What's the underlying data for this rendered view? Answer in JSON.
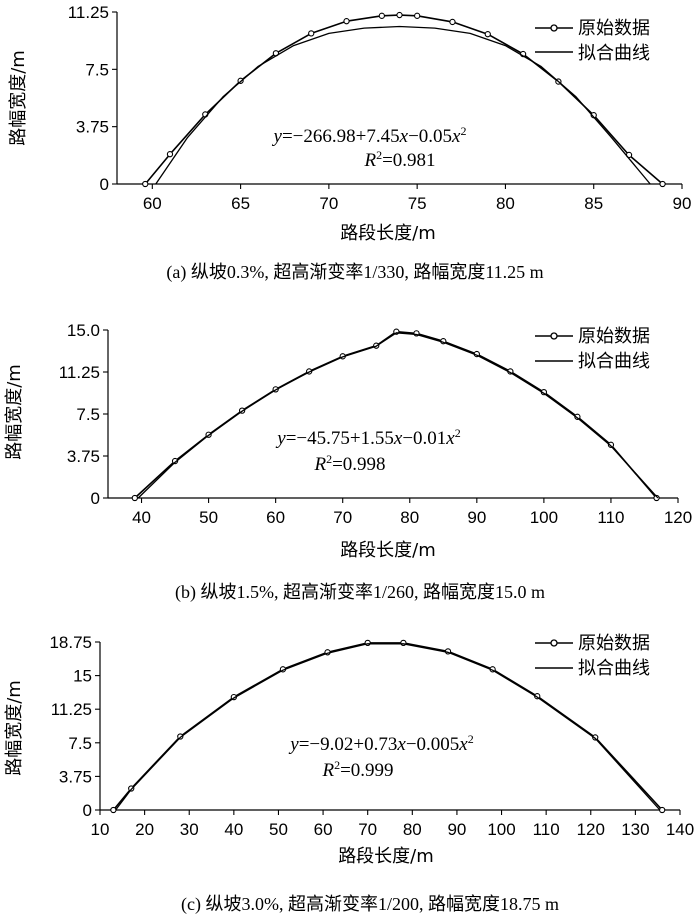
{
  "chart_data": [
    {
      "type": "line",
      "xlabel": "路段长度/m",
      "ylabel": "路幅宽度/m",
      "xlim": [
        58,
        90
      ],
      "ylim": [
        0,
        11.25
      ],
      "xticks": [
        "60",
        "65",
        "70",
        "75",
        "80",
        "85",
        "90"
      ],
      "yticks": [
        "0",
        "3.75",
        "7.5",
        "11.25"
      ],
      "legend": {
        "position": "top-right",
        "entries": [
          "原始数据",
          "拟合曲线"
        ]
      },
      "equation": {
        "prefix": "y",
        "body": "=−266.98+7.45",
        "x1": "x",
        "mid": "−0.05",
        "x2": "x",
        "sup": "2"
      },
      "r2": {
        "r": "R",
        "sup": "2",
        "value": "=0.981"
      },
      "caption": "(a) 纵坡0.3%, 超高渐变率1/330, 路幅宽度11.25 m",
      "series": [
        {
          "name": "原始数据",
          "marker": "circle",
          "x": [
            59.6,
            61,
            63,
            65,
            67,
            69,
            71,
            73,
            74,
            75,
            77,
            79,
            81,
            83,
            85,
            87,
            88.9
          ],
          "y": [
            0,
            1.95,
            4.55,
            6.75,
            8.55,
            9.85,
            10.65,
            11.0,
            11.05,
            11.0,
            10.6,
            9.8,
            8.5,
            6.7,
            4.5,
            1.9,
            0
          ]
        },
        {
          "name": "拟合曲线",
          "marker": "none",
          "x": [
            60.2,
            62,
            64,
            66,
            68,
            70,
            72,
            74,
            76,
            78,
            80,
            82,
            84,
            86,
            88.2
          ],
          "y": [
            0,
            3.05,
            5.7,
            7.7,
            9.05,
            9.85,
            10.2,
            10.3,
            10.2,
            9.85,
            9.05,
            7.7,
            5.7,
            3.05,
            0
          ]
        }
      ]
    },
    {
      "type": "line",
      "xlabel": "路段长度/m",
      "ylabel": "路幅宽度/m",
      "xlim": [
        35,
        120
      ],
      "ylim": [
        0,
        15.0
      ],
      "xticks": [
        "40",
        "50",
        "60",
        "70",
        "80",
        "90",
        "100",
        "110",
        "120"
      ],
      "yticks": [
        "0",
        "3.75",
        "7.5",
        "11.25",
        "15.0"
      ],
      "legend": {
        "position": "top-right",
        "entries": [
          "原始数据",
          "拟合曲线"
        ]
      },
      "equation": {
        "prefix": "y",
        "body": "=−45.75+1.55",
        "x1": "x",
        "mid": "−0.01",
        "x2": "x",
        "sup": "2"
      },
      "r2": {
        "r": "R",
        "sup": "2",
        "value": "=0.998"
      },
      "caption": "(b) 纵坡1.5%, 超高渐变率1/260, 路幅宽度15.0 m",
      "series": [
        {
          "name": "原始数据",
          "marker": "circle",
          "x": [
            39,
            45,
            50,
            55,
            60,
            65,
            70,
            75,
            78,
            81,
            85,
            90,
            95,
            100,
            105,
            110,
            116.8
          ],
          "y": [
            0,
            3.3,
            5.65,
            7.8,
            9.7,
            11.3,
            12.65,
            13.6,
            14.85,
            14.7,
            14.0,
            12.85,
            11.3,
            9.45,
            7.25,
            4.75,
            0
          ]
        },
        {
          "name": "拟合曲线",
          "marker": "none",
          "x": [
            39.5,
            45,
            50,
            55,
            60,
            65,
            70,
            75,
            78,
            81,
            85,
            90,
            95,
            100,
            105,
            110,
            117
          ],
          "y": [
            0,
            3.2,
            5.6,
            7.75,
            9.65,
            11.25,
            12.6,
            13.55,
            14.75,
            14.6,
            13.9,
            12.75,
            11.2,
            9.35,
            7.15,
            4.65,
            0
          ]
        }
      ]
    },
    {
      "type": "line",
      "xlabel": "路段长度/m",
      "ylabel": "路幅宽度/m",
      "xlim": [
        10,
        140
      ],
      "ylim": [
        0,
        18.75
      ],
      "xticks": [
        "10",
        "20",
        "30",
        "40",
        "50",
        "60",
        "70",
        "80",
        "90",
        "100",
        "110",
        "120",
        "130",
        "140"
      ],
      "yticks": [
        "0",
        "3.75",
        "7.5",
        "11.25",
        "15",
        "18.75"
      ],
      "legend": {
        "position": "top-right",
        "entries": [
          "原始数据",
          "拟合曲线"
        ]
      },
      "equation": {
        "prefix": "y",
        "body": "=−9.02+0.73",
        "x1": "x",
        "mid": "−0.005",
        "x2": "x",
        "sup": "2"
      },
      "r2": {
        "r": "R",
        "sup": "2",
        "value": "=0.999"
      },
      "caption": "(c) 纵坡3.0%, 超高渐变率1/200, 路幅宽度18.75 m",
      "series": [
        {
          "name": "原始数据",
          "marker": "circle",
          "x": [
            13,
            17,
            28,
            40,
            51,
            61,
            70,
            78,
            88,
            98,
            108,
            121,
            136
          ],
          "y": [
            0,
            2.4,
            8.2,
            12.6,
            15.7,
            17.6,
            18.65,
            18.65,
            17.7,
            15.7,
            12.7,
            8.1,
            0
          ]
        },
        {
          "name": "拟合曲线",
          "marker": "none",
          "x": [
            13.5,
            17,
            28,
            40,
            51,
            61,
            70,
            78,
            88,
            98,
            108,
            121,
            135.5
          ],
          "y": [
            0,
            2.3,
            8.1,
            12.5,
            15.6,
            17.5,
            18.55,
            18.55,
            17.6,
            15.6,
            12.6,
            8.0,
            0
          ]
        }
      ]
    }
  ]
}
